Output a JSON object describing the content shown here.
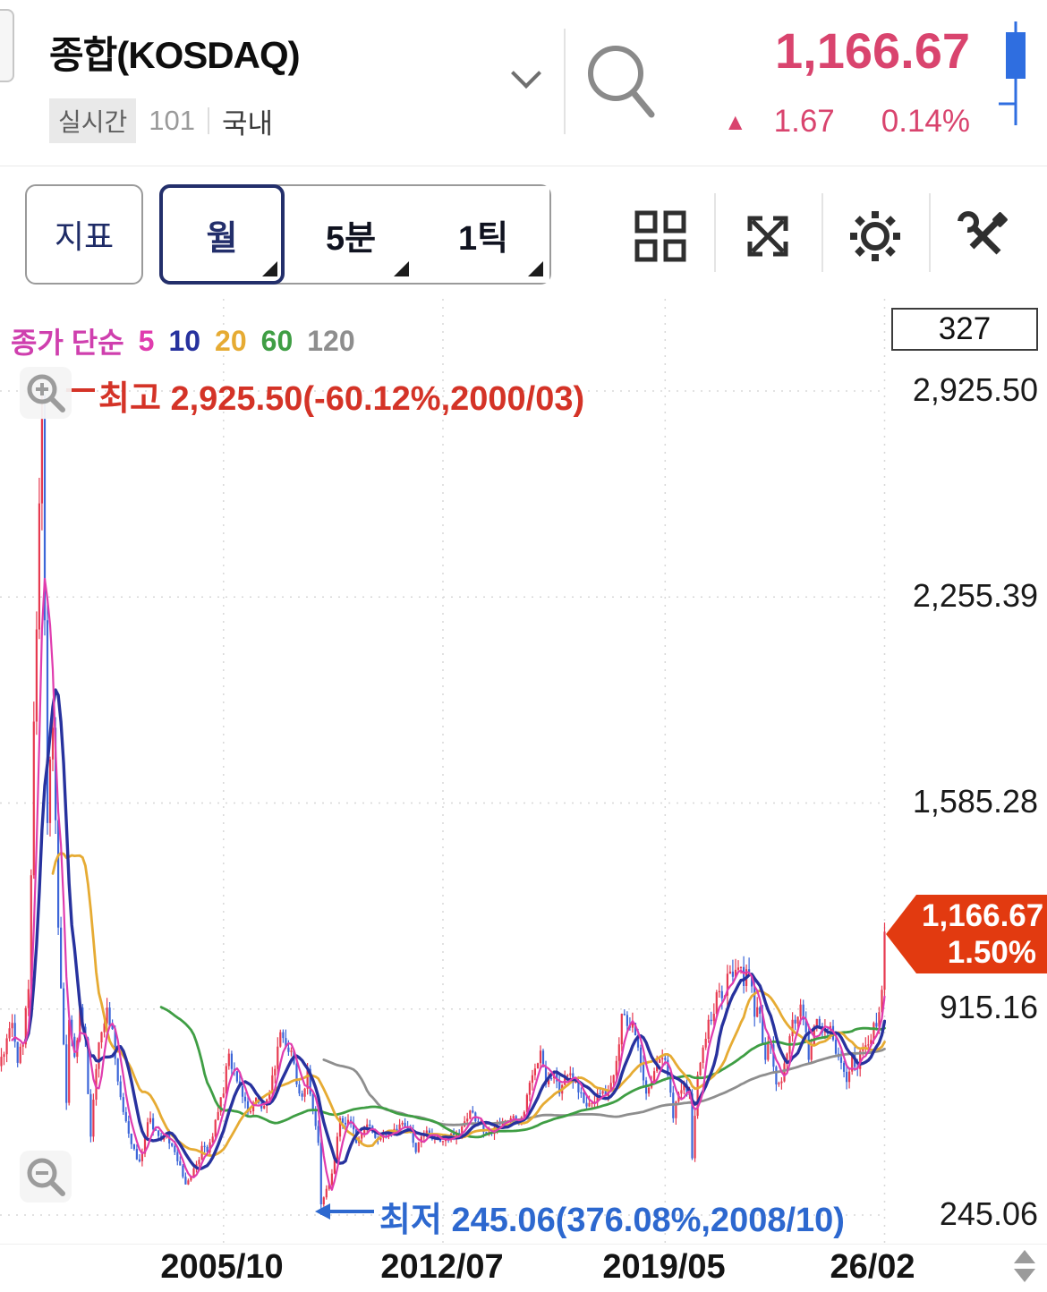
{
  "header": {
    "title": "종합(KOSDAQ)",
    "realtime_badge": "실시간",
    "code": "101",
    "market": "국내",
    "price": "1,166.67",
    "up_triangle": "▲",
    "change": "1.67",
    "change_pct": "0.14%",
    "price_color": "#d9446e"
  },
  "toolbar": {
    "indicator": "지표",
    "period_month": "월",
    "period_5min": "5분",
    "period_1tick": "1틱"
  },
  "chart": {
    "bar_count": "327",
    "legend": {
      "label": "종가 단순",
      "label_color": "#cf3fae"
    },
    "y_labels": [
      "2,925.50",
      "2,255.39",
      "1,585.28",
      "915.16",
      "245.06"
    ],
    "x_labels": [
      "2005/10",
      "2012/07",
      "2019/05",
      "26/02"
    ],
    "high_annotation": "최고 2,925.50(-60.12%,2000/03)",
    "high_color": "#d43327",
    "low_annotation": "최저 245.06(376.08%,2008/10)",
    "low_color": "#2d68cf",
    "price_tag": {
      "price": "1,166.67",
      "pct": "1.50%",
      "bg": "#e23a10"
    }
  },
  "chart_data": {
    "type": "candlestick",
    "title": "KOSDAQ Composite, monthly candles with MA(5,10,20,60,120)",
    "x_start": "1998/12",
    "months": 327,
    "y_range": [
      245.06,
      2925.5
    ],
    "y_ticks": [
      2925.5,
      2255.39,
      1585.28,
      915.16,
      245.06
    ],
    "x_gridlines": [
      "2005/10",
      "2012/07",
      "2019/05",
      "2026/02"
    ],
    "high_point": {
      "date": "2000/03",
      "value": 2925.5
    },
    "low_point": {
      "date": "2008/10",
      "value": 245.06
    },
    "last": {
      "date": "2026/02",
      "close": 1166.67,
      "change_pct": "1.50%"
    },
    "candle_up_color": "#e73a50",
    "candle_down_color": "#3c66d8",
    "ma_series": [
      {
        "period": 5,
        "color": "#e03cae"
      },
      {
        "period": 10,
        "color": "#27329e"
      },
      {
        "period": 20,
        "color": "#e6ab33"
      },
      {
        "period": 60,
        "color": "#3f9e44"
      },
      {
        "period": 120,
        "color": "#8e8e8e"
      }
    ],
    "anchors": [
      [
        "1998/12",
        760
      ],
      [
        "1999/02",
        820
      ],
      [
        "1999/04",
        870
      ],
      [
        "1999/06",
        740
      ],
      [
        "1999/08",
        800
      ],
      [
        "1999/10",
        980
      ],
      [
        "1999/11",
        1350
      ],
      [
        "1999/12",
        1850
      ],
      [
        "2000/01",
        2150
      ],
      [
        "2000/02",
        2560
      ],
      [
        "2000/03",
        2834
      ],
      [
        "2000/04",
        2180
      ],
      [
        "2000/05",
        1520
      ],
      [
        "2000/07",
        1830
      ],
      [
        "2000/09",
        1180
      ],
      [
        "2000/11",
        800
      ],
      [
        "2000/12",
        610
      ],
      [
        "2001/01",
        880
      ],
      [
        "2001/03",
        760
      ],
      [
        "2001/05",
        920
      ],
      [
        "2001/07",
        820
      ],
      [
        "2001/09",
        500
      ],
      [
        "2001/11",
        720
      ],
      [
        "2002/01",
        840
      ],
      [
        "2002/03",
        920
      ],
      [
        "2002/05",
        850
      ],
      [
        "2002/07",
        680
      ],
      [
        "2002/09",
        580
      ],
      [
        "2002/11",
        510
      ],
      [
        "2003/01",
        460
      ],
      [
        "2003/03",
        420
      ],
      [
        "2003/05",
        500
      ],
      [
        "2003/07",
        560
      ],
      [
        "2003/09",
        520
      ],
      [
        "2003/11",
        490
      ],
      [
        "2004/01",
        510
      ],
      [
        "2004/03",
        470
      ],
      [
        "2004/05",
        420
      ],
      [
        "2004/07",
        370
      ],
      [
        "2004/08",
        345
      ],
      [
        "2004/10",
        370
      ],
      [
        "2004/12",
        410
      ],
      [
        "2005/02",
        470
      ],
      [
        "2005/04",
        450
      ],
      [
        "2005/06",
        500
      ],
      [
        "2005/08",
        580
      ],
      [
        "2005/10",
        640
      ],
      [
        "2005/12",
        770
      ],
      [
        "2006/01",
        720
      ],
      [
        "2006/03",
        680
      ],
      [
        "2006/05",
        630
      ],
      [
        "2006/07",
        580
      ],
      [
        "2006/09",
        605
      ],
      [
        "2006/11",
        610
      ],
      [
        "2007/01",
        600
      ],
      [
        "2007/03",
        640
      ],
      [
        "2007/05",
        720
      ],
      [
        "2007/07",
        840
      ],
      [
        "2007/09",
        790
      ],
      [
        "2007/11",
        780
      ],
      [
        "2008/01",
        670
      ],
      [
        "2008/03",
        630
      ],
      [
        "2008/05",
        720
      ],
      [
        "2008/07",
        590
      ],
      [
        "2008/09",
        480
      ],
      [
        "2008/10",
        280
      ],
      [
        "2008/12",
        330
      ],
      [
        "2009/02",
        380
      ],
      [
        "2009/04",
        500
      ],
      [
        "2009/05",
        560
      ],
      [
        "2009/07",
        540
      ],
      [
        "2009/09",
        545
      ],
      [
        "2009/11",
        480
      ],
      [
        "2010/01",
        510
      ],
      [
        "2010/04",
        535
      ],
      [
        "2010/07",
        490
      ],
      [
        "2010/10",
        505
      ],
      [
        "2011/01",
        525
      ],
      [
        "2011/04",
        545
      ],
      [
        "2011/07",
        520
      ],
      [
        "2011/09",
        450
      ],
      [
        "2011/11",
        500
      ],
      [
        "2012/01",
        520
      ],
      [
        "2012/04",
        500
      ],
      [
        "2012/07",
        486
      ],
      [
        "2012/10",
        510
      ],
      [
        "2013/01",
        500
      ],
      [
        "2013/03",
        550
      ],
      [
        "2013/05",
        585
      ],
      [
        "2013/08",
        540
      ],
      [
        "2013/11",
        510
      ],
      [
        "2014/02",
        530
      ],
      [
        "2014/05",
        550
      ],
      [
        "2014/08",
        560
      ],
      [
        "2014/11",
        540
      ],
      [
        "2015/01",
        580
      ],
      [
        "2015/04",
        700
      ],
      [
        "2015/07",
        780
      ],
      [
        "2015/09",
        670
      ],
      [
        "2015/11",
        690
      ],
      [
        "2016/01",
        680
      ],
      [
        "2016/02",
        640
      ],
      [
        "2016/05",
        700
      ],
      [
        "2016/08",
        680
      ],
      [
        "2016/11",
        610
      ],
      [
        "2017/02",
        610
      ],
      [
        "2017/05",
        640
      ],
      [
        "2017/08",
        650
      ],
      [
        "2017/10",
        700
      ],
      [
        "2017/12",
        800
      ],
      [
        "2018/01",
        900
      ],
      [
        "2018/03",
        860
      ],
      [
        "2018/05",
        870
      ],
      [
        "2018/07",
        790
      ],
      [
        "2018/10",
        640
      ],
      [
        "2018/12",
        680
      ],
      [
        "2019/02",
        740
      ],
      [
        "2019/04",
        756
      ],
      [
        "2019/06",
        700
      ],
      [
        "2019/08",
        560
      ],
      [
        "2019/10",
        640
      ],
      [
        "2019/12",
        670
      ],
      [
        "2020/02",
        640
      ],
      [
        "2020/03",
        430
      ],
      [
        "2020/05",
        700
      ],
      [
        "2020/07",
        790
      ],
      [
        "2020/09",
        880
      ],
      [
        "2020/11",
        900
      ],
      [
        "2020/12",
        970
      ],
      [
        "2021/02",
        950
      ],
      [
        "2021/04",
        1030
      ],
      [
        "2021/06",
        1020
      ],
      [
        "2021/08",
        1050
      ],
      [
        "2021/10",
        990
      ],
      [
        "2021/12",
        1030
      ],
      [
        "2022/02",
        890
      ],
      [
        "2022/04",
        900
      ],
      [
        "2022/06",
        750
      ],
      [
        "2022/08",
        800
      ],
      [
        "2022/10",
        670
      ],
      [
        "2022/12",
        680
      ],
      [
        "2023/02",
        770
      ],
      [
        "2023/04",
        880
      ],
      [
        "2023/06",
        890
      ],
      [
        "2023/07",
        930
      ],
      [
        "2023/09",
        840
      ],
      [
        "2023/10",
        750
      ],
      [
        "2023/12",
        860
      ],
      [
        "2024/02",
        860
      ],
      [
        "2024/04",
        850
      ],
      [
        "2024/06",
        860
      ],
      [
        "2024/08",
        770
      ],
      [
        "2024/10",
        740
      ],
      [
        "2024/12",
        678
      ],
      [
        "2025/02",
        770
      ],
      [
        "2025/04",
        720
      ],
      [
        "2025/06",
        790
      ],
      [
        "2025/08",
        800
      ],
      [
        "2025/10",
        870
      ],
      [
        "2025/12",
        905
      ],
      [
        "2026/01",
        978
      ],
      [
        "2026/02",
        1166.67
      ]
    ]
  }
}
